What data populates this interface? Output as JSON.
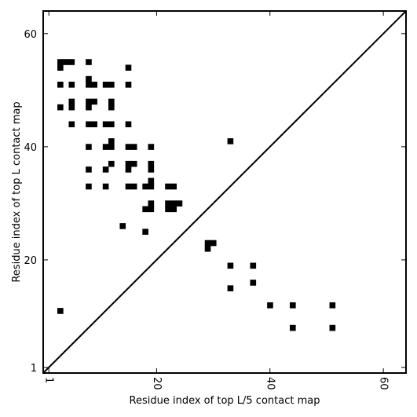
{
  "chart_data": {
    "type": "scatter",
    "title": "",
    "xlabel": "Residue index of top L/5 contact map",
    "ylabel": "Residue index of top L contact map",
    "xlim": [
      0,
      64
    ],
    "ylim": [
      0,
      64
    ],
    "xticks": [
      1,
      20,
      40,
      60
    ],
    "yticks": [
      1,
      20,
      40,
      60
    ],
    "grid": false,
    "diagonal_line": true,
    "marker": "square",
    "color": "#000000",
    "points": [
      [
        3,
        55
      ],
      [
        4,
        55
      ],
      [
        5,
        55
      ],
      [
        3,
        54
      ],
      [
        8,
        55
      ],
      [
        15,
        54
      ],
      [
        3,
        51
      ],
      [
        5,
        51
      ],
      [
        8,
        52
      ],
      [
        8,
        51
      ],
      [
        9,
        51
      ],
      [
        11,
        51
      ],
      [
        12,
        51
      ],
      [
        15,
        51
      ],
      [
        5,
        48
      ],
      [
        8,
        48
      ],
      [
        9,
        48
      ],
      [
        12,
        48
      ],
      [
        3,
        47
      ],
      [
        5,
        47
      ],
      [
        8,
        47
      ],
      [
        12,
        47
      ],
      [
        5,
        44
      ],
      [
        8,
        44
      ],
      [
        9,
        44
      ],
      [
        11,
        44
      ],
      [
        12,
        44
      ],
      [
        15,
        44
      ],
      [
        12,
        41
      ],
      [
        8,
        40
      ],
      [
        11,
        40
      ],
      [
        12,
        40
      ],
      [
        15,
        40
      ],
      [
        16,
        40
      ],
      [
        19,
        40
      ],
      [
        33,
        41
      ],
      [
        12,
        37
      ],
      [
        15,
        37
      ],
      [
        16,
        37
      ],
      [
        19,
        37
      ],
      [
        8,
        36
      ],
      [
        11,
        36
      ],
      [
        15,
        36
      ],
      [
        19,
        36
      ],
      [
        19,
        34
      ],
      [
        8,
        33
      ],
      [
        11,
        33
      ],
      [
        15,
        33
      ],
      [
        16,
        33
      ],
      [
        18,
        33
      ],
      [
        19,
        33
      ],
      [
        22,
        33
      ],
      [
        23,
        33
      ],
      [
        19,
        30
      ],
      [
        22,
        30
      ],
      [
        23,
        30
      ],
      [
        24,
        30
      ],
      [
        18,
        29
      ],
      [
        19,
        29
      ],
      [
        22,
        29
      ],
      [
        23,
        29
      ],
      [
        14,
        26
      ],
      [
        18,
        25
      ],
      [
        29,
        23
      ],
      [
        30,
        23
      ],
      [
        29,
        22
      ],
      [
        33,
        19
      ],
      [
        37,
        19
      ],
      [
        37,
        16
      ],
      [
        33,
        15
      ],
      [
        40,
        12
      ],
      [
        44,
        12
      ],
      [
        51,
        12
      ],
      [
        44,
        8
      ],
      [
        51,
        8
      ],
      [
        3,
        11
      ]
    ]
  }
}
